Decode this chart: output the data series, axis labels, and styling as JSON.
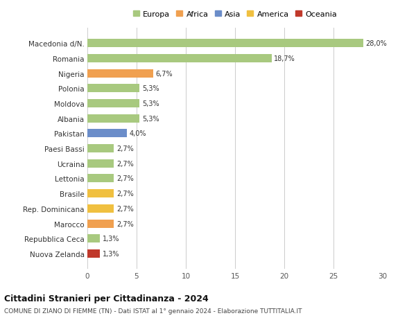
{
  "categories": [
    "Nuova Zelanda",
    "Repubblica Ceca",
    "Marocco",
    "Rep. Dominicana",
    "Brasile",
    "Lettonia",
    "Ucraina",
    "Paesi Bassi",
    "Pakistan",
    "Albania",
    "Moldova",
    "Polonia",
    "Nigeria",
    "Romania",
    "Macedonia d/N."
  ],
  "values": [
    1.3,
    1.3,
    2.7,
    2.7,
    2.7,
    2.7,
    2.7,
    2.7,
    4.0,
    5.3,
    5.3,
    5.3,
    6.7,
    18.7,
    28.0
  ],
  "labels": [
    "1,3%",
    "1,3%",
    "2,7%",
    "2,7%",
    "2,7%",
    "2,7%",
    "2,7%",
    "2,7%",
    "4,0%",
    "5,3%",
    "5,3%",
    "5,3%",
    "6,7%",
    "18,7%",
    "28,0%"
  ],
  "colors": [
    "#c0392b",
    "#a8c97f",
    "#f0a050",
    "#f0c040",
    "#f0c040",
    "#a8c97f",
    "#a8c97f",
    "#a8c97f",
    "#6b8dc9",
    "#a8c97f",
    "#a8c97f",
    "#a8c97f",
    "#f0a050",
    "#a8c97f",
    "#a8c97f"
  ],
  "legend": [
    {
      "label": "Europa",
      "color": "#a8c97f"
    },
    {
      "label": "Africa",
      "color": "#f0a050"
    },
    {
      "label": "Asia",
      "color": "#6b8dc9"
    },
    {
      "label": "America",
      "color": "#f0c040"
    },
    {
      "label": "Oceania",
      "color": "#c0392b"
    }
  ],
  "xlim": [
    0,
    30
  ],
  "xticks": [
    0,
    5,
    10,
    15,
    20,
    25,
    30
  ],
  "title": "Cittadini Stranieri per Cittadinanza - 2024",
  "subtitle": "COMUNE DI ZIANO DI FIEMME (TN) - Dati ISTAT al 1° gennaio 2024 - Elaborazione TUTTITALIA.IT",
  "background_color": "#ffffff",
  "grid_color": "#cccccc"
}
